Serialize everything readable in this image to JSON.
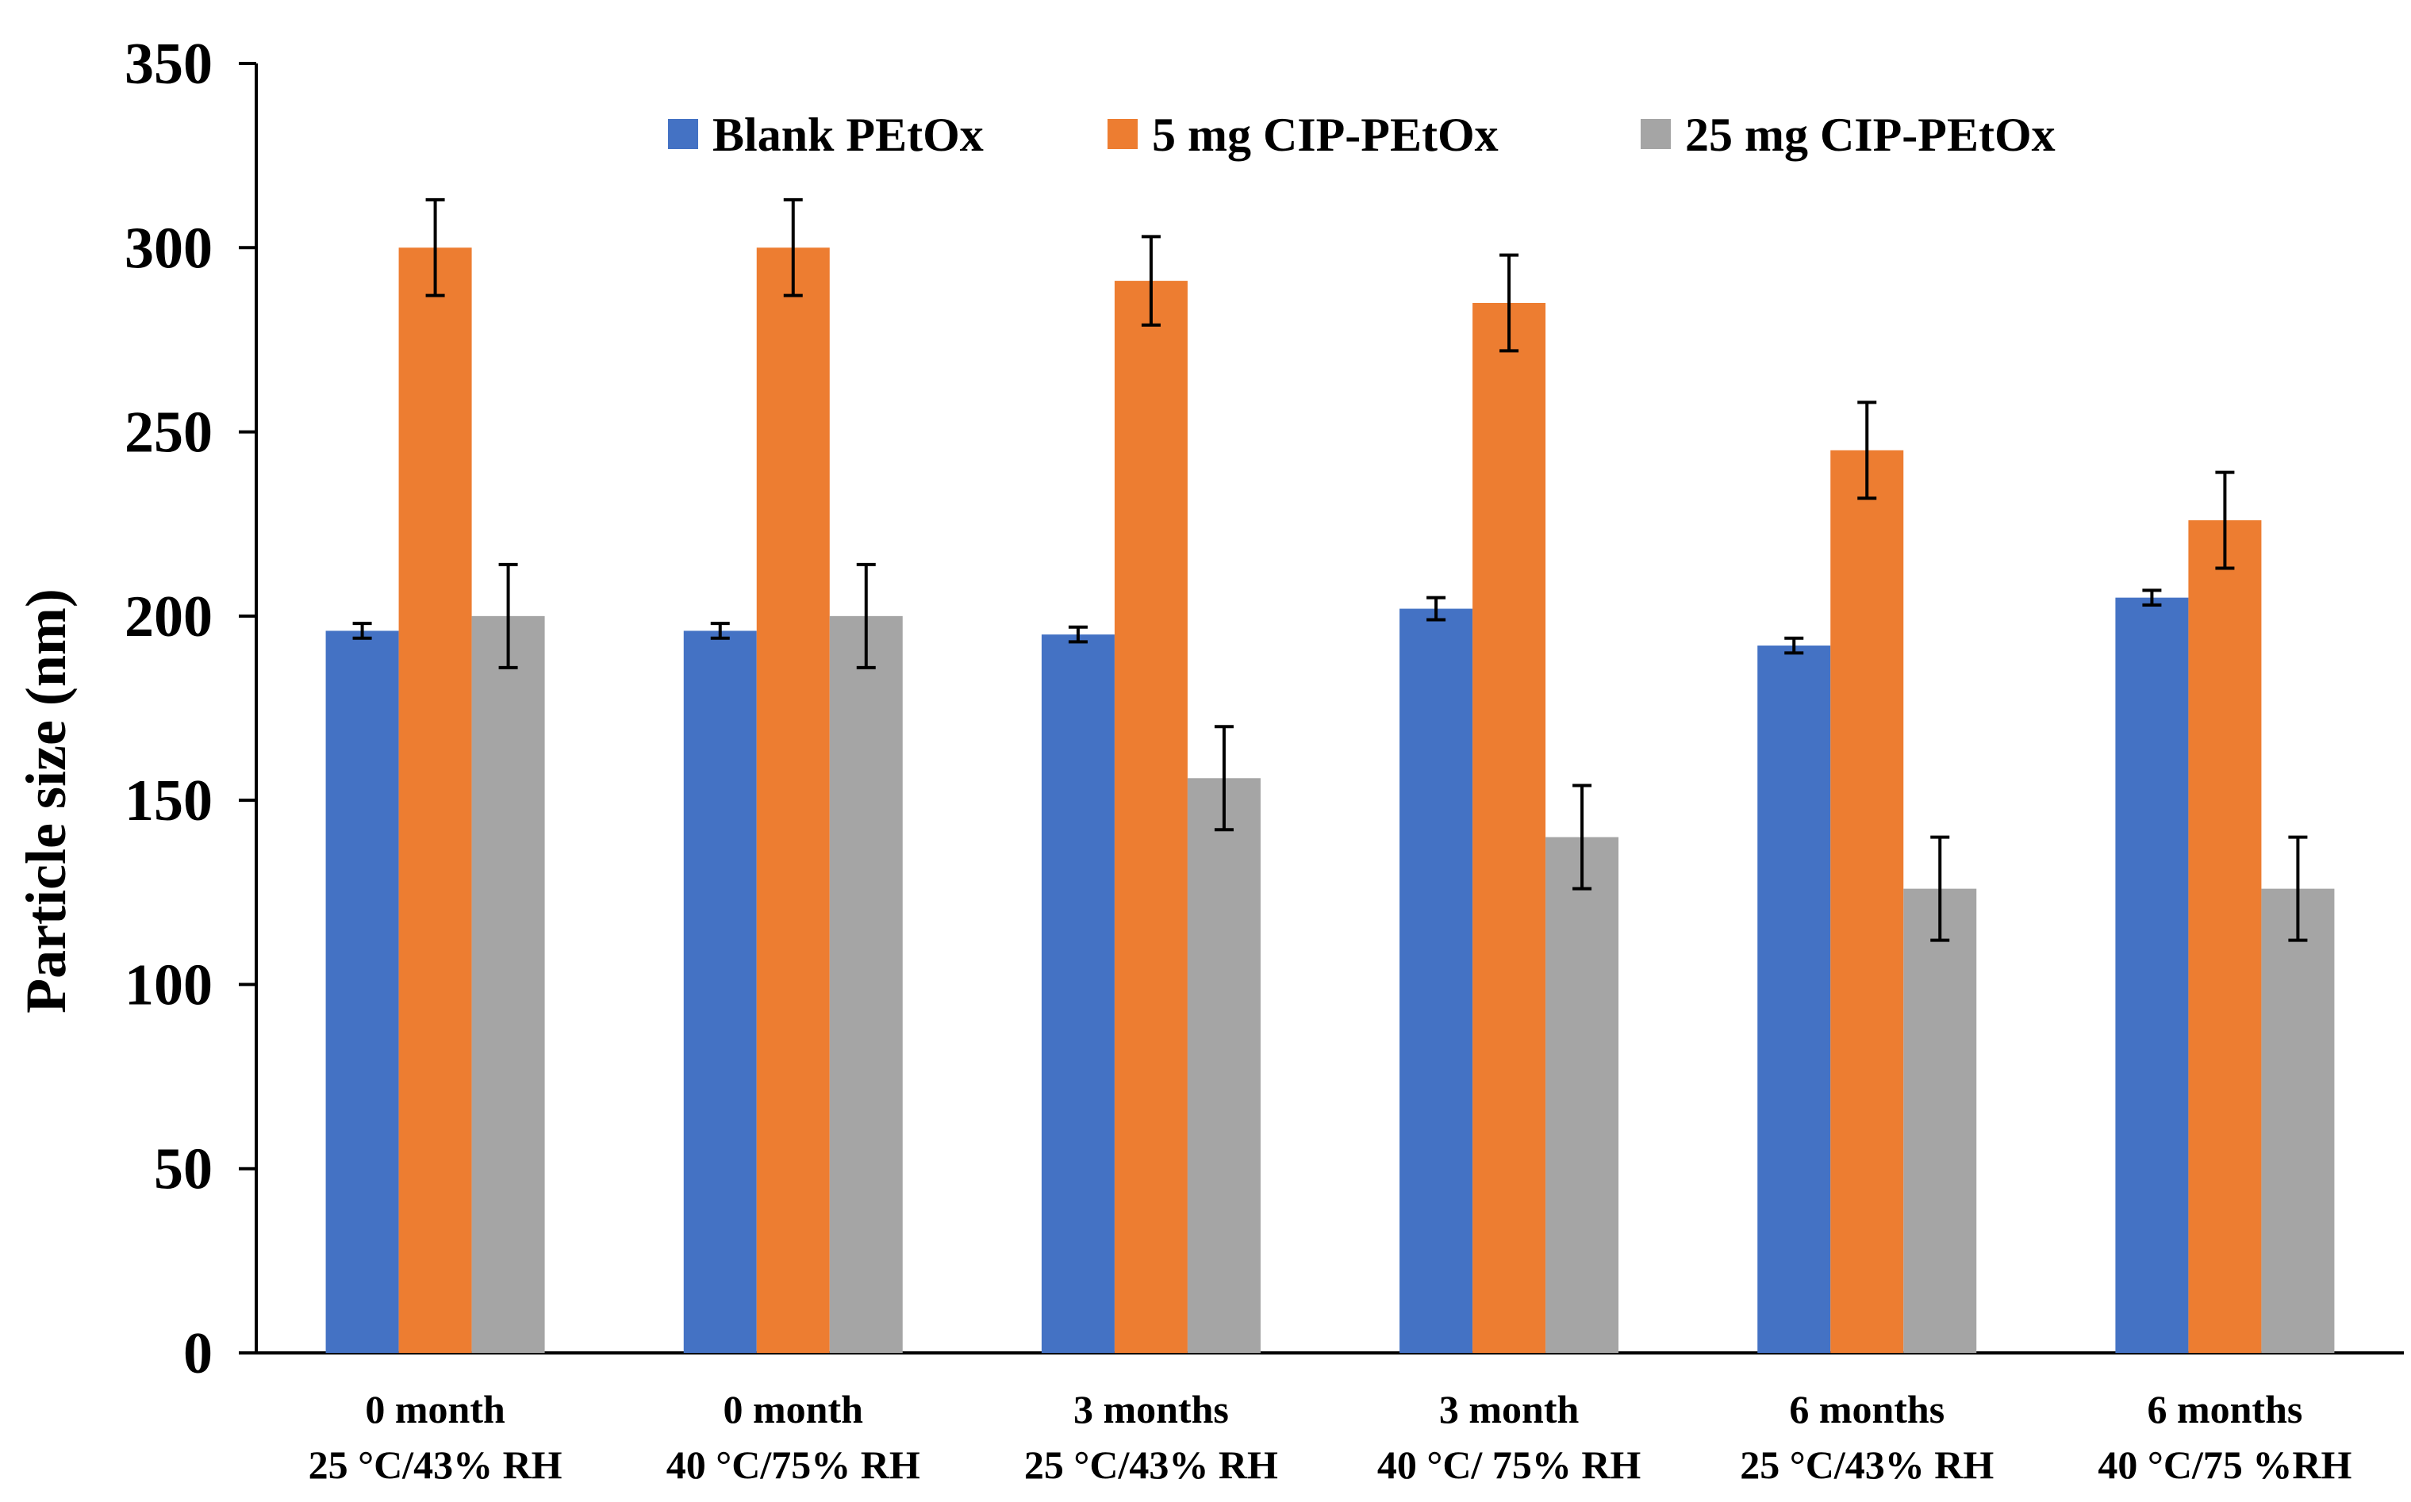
{
  "chart_data": {
    "type": "bar",
    "title": "",
    "xlabel": "",
    "ylabel": "Particle size (nm)",
    "ylim": [
      0,
      350
    ],
    "yticks": [
      0,
      50,
      100,
      150,
      200,
      250,
      300,
      350
    ],
    "grid": false,
    "legend_position": "top",
    "categories": [
      [
        "0 month",
        "25 °C/43% RH"
      ],
      [
        "0 month",
        "40 °C/75% RH"
      ],
      [
        "3 months",
        "25 °C/43% RH"
      ],
      [
        "3 month",
        "40 °C/ 75% RH"
      ],
      [
        "6 months",
        "25 °C/43% RH"
      ],
      [
        "6 months",
        "40 °C/75 %RH"
      ]
    ],
    "series": [
      {
        "name": "Blank PEtOx",
        "color": "#4472C4",
        "values": [
          196,
          196,
          195,
          202,
          192,
          205
        ],
        "errors": [
          2,
          2,
          2,
          3,
          2,
          2
        ]
      },
      {
        "name": "5 mg CIP-PEtOx",
        "color": "#ED7D31",
        "values": [
          300,
          300,
          291,
          285,
          245,
          226
        ],
        "errors": [
          13,
          13,
          12,
          13,
          13,
          13
        ]
      },
      {
        "name": "25 mg CIP-PEtOx",
        "color": "#A5A5A5",
        "values": [
          200,
          200,
          156,
          140,
          126,
          126
        ],
        "errors": [
          14,
          14,
          14,
          14,
          14,
          14
        ]
      }
    ]
  }
}
